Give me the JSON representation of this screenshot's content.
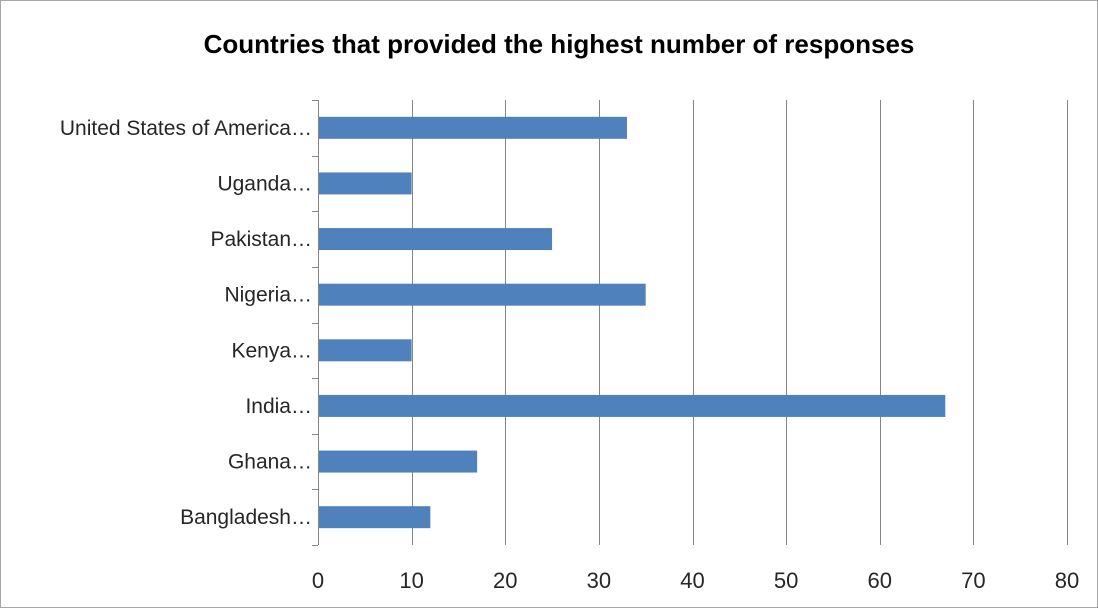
{
  "chart_data": {
    "type": "bar",
    "orientation": "horizontal",
    "title": "Countries that provided the highest number of responses",
    "xlabel": "",
    "ylabel": "",
    "categories": [
      "Bangladesh…",
      "Ghana…",
      "India…",
      "Kenya…",
      "Nigeria…",
      "Pakistan…",
      "Uganda…",
      "United States of America…"
    ],
    "values": [
      12,
      17,
      67,
      10,
      35,
      25,
      10,
      33
    ],
    "xlim": [
      0,
      80
    ],
    "xticks": [
      "0",
      "10",
      "20",
      "30",
      "40",
      "50",
      "60",
      "70",
      "80"
    ],
    "grid": "vertical",
    "legend": "none",
    "bar_color": "#4f81bd",
    "grid_color": "#868686"
  }
}
